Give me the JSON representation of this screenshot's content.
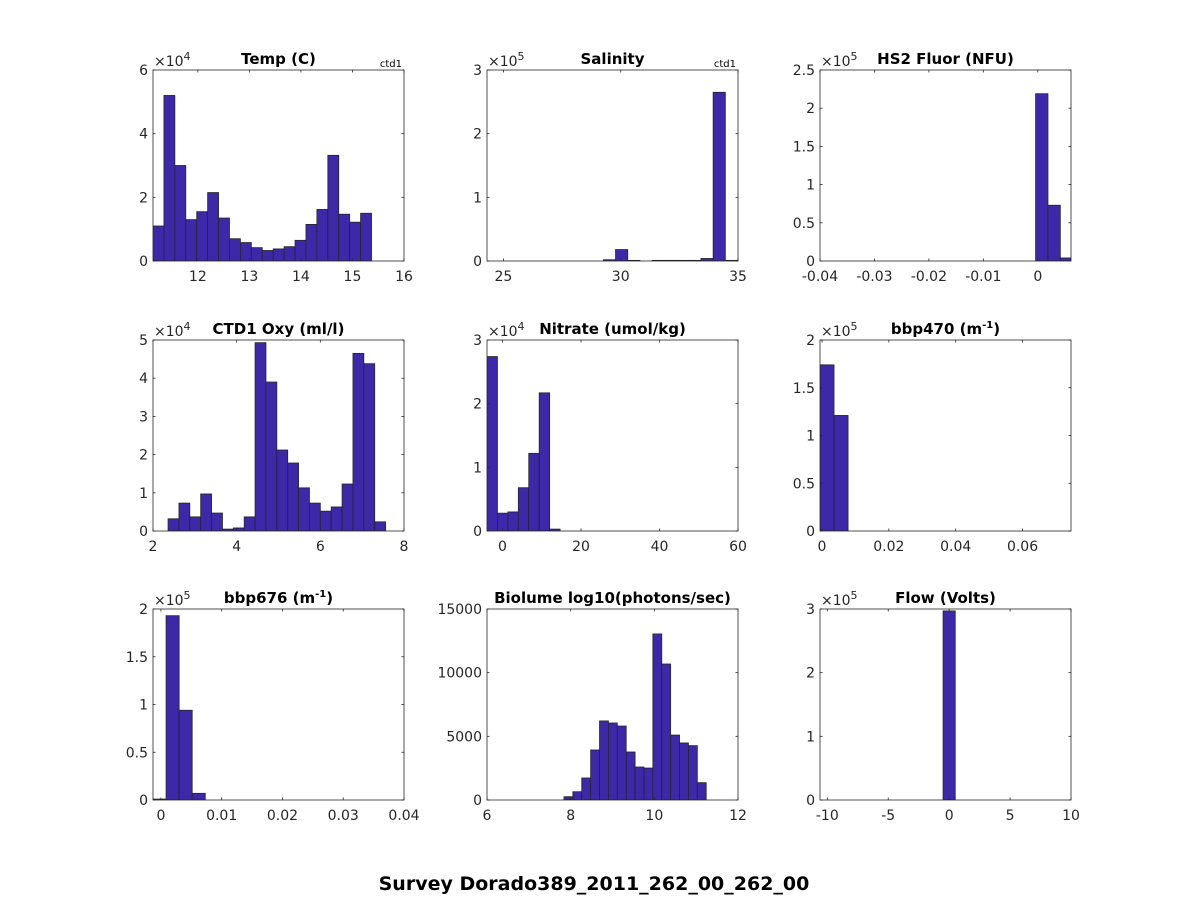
{
  "suptitle": "Survey Dorado389_2011_262_00_262_00",
  "colors": {
    "bar": "#3c28a8",
    "edge": "#262626",
    "axis": "#262626"
  },
  "chart_data": [
    {
      "type": "bar",
      "title": "Temp (C)",
      "corner": "ctd1",
      "exponent": "4",
      "xlim": [
        11.13,
        16
      ],
      "ylim": [
        0,
        60000
      ],
      "xticks": [
        12,
        13,
        14,
        15,
        16
      ],
      "xtick_labels": [
        "12",
        "13",
        "14",
        "15",
        "16"
      ],
      "yticks": [
        0,
        20000,
        40000,
        60000
      ],
      "ytick_labels": [
        "0",
        "2",
        "4",
        "6"
      ],
      "bin_start": 11.13,
      "bin_width": 0.212,
      "values": [
        11000,
        52000,
        30000,
        13000,
        15500,
        21500,
        13500,
        7000,
        5800,
        4200,
        3300,
        3800,
        4500,
        6500,
        11500,
        16200,
        33200,
        14700,
        12200,
        15000
      ]
    },
    {
      "type": "bar",
      "title": "Salinity",
      "corner": "ctd1",
      "exponent": "5",
      "xlim": [
        24.3,
        35
      ],
      "ylim": [
        0,
        300000
      ],
      "xticks": [
        25,
        30,
        35
      ],
      "xtick_labels": [
        "25",
        "30",
        "35"
      ],
      "yticks": [
        0,
        100000,
        200000,
        300000
      ],
      "ytick_labels": [
        "0",
        "1",
        "2",
        "3"
      ],
      "bin_start": 29.26,
      "bin_width": 0.52,
      "values": [
        2000,
        18000,
        1000,
        0,
        1000,
        1000,
        1000,
        1000,
        4000,
        265000,
        1000
      ]
    },
    {
      "type": "bar",
      "title": "HS2 Fluor (NFU)",
      "exponent": "5",
      "xlim": [
        -0.04,
        0.0061
      ],
      "ylim": [
        0,
        250000
      ],
      "xticks": [
        -0.04,
        -0.03,
        -0.02,
        -0.01,
        0
      ],
      "xtick_labels": [
        "-0.04",
        "-0.03",
        "-0.02",
        "-0.01",
        "0"
      ],
      "yticks": [
        0,
        50000,
        100000,
        150000,
        200000,
        250000
      ],
      "ytick_labels": [
        "0",
        "0.5",
        "1",
        "1.5",
        "2",
        "2.5"
      ],
      "bin_start": -0.0004,
      "bin_width": 0.00227,
      "values": [
        219000,
        73000,
        4000
      ]
    },
    {
      "type": "bar",
      "title": "CTD1 Oxy (ml/l)",
      "exponent": "4",
      "xlim": [
        2,
        8
      ],
      "ylim": [
        0,
        50000
      ],
      "xticks": [
        2,
        4,
        6,
        8
      ],
      "xtick_labels": [
        "2",
        "4",
        "6",
        "8"
      ],
      "yticks": [
        0,
        10000,
        20000,
        30000,
        40000,
        50000
      ],
      "ytick_labels": [
        "0",
        "1",
        "2",
        "3",
        "4",
        "5"
      ],
      "bin_start": 2.36,
      "bin_width": 0.26,
      "values": [
        3200,
        7300,
        3700,
        9700,
        4700,
        500,
        800,
        3700,
        49300,
        39000,
        21200,
        17800,
        11300,
        7300,
        5200,
        6300,
        12300,
        46500,
        43800,
        2400
      ]
    },
    {
      "type": "bar",
      "title": "Nitrate (umol/kg)",
      "exponent": "4",
      "xlim": [
        -3.95,
        60
      ],
      "ylim": [
        0,
        30000
      ],
      "xticks": [
        0,
        20,
        40,
        60
      ],
      "xtick_labels": [
        "0",
        "20",
        "40",
        "60"
      ],
      "yticks": [
        0,
        10000,
        20000,
        30000
      ],
      "ytick_labels": [
        "0",
        "1",
        "2",
        "3"
      ],
      "bin_start": -3.95,
      "bin_width": 2.66,
      "values": [
        27400,
        2800,
        3000,
        6800,
        12200,
        21700,
        300
      ]
    },
    {
      "type": "bar",
      "title": "bbp470 (m",
      "title_sup": "-1",
      "title_end": ")",
      "exponent": "5",
      "xlim": [
        -0.0006,
        0.0745
      ],
      "ylim": [
        0,
        200000
      ],
      "xticks": [
        0,
        0.02,
        0.04,
        0.06
      ],
      "xtick_labels": [
        "0",
        "0.02",
        "0.04",
        "0.06"
      ],
      "yticks": [
        0,
        50000,
        100000,
        150000,
        200000
      ],
      "ytick_labels": [
        "0",
        "0.5",
        "1",
        "1.5",
        "2"
      ],
      "bin_start": -0.0006,
      "bin_width": 0.0042,
      "values": [
        174000,
        121000
      ]
    },
    {
      "type": "bar",
      "title": "bbp676 (m",
      "title_sup": "-1",
      "title_end": ")",
      "exponent": "5",
      "xlim": [
        -0.0013,
        0.04
      ],
      "ylim": [
        0,
        200000
      ],
      "xticks": [
        0,
        0.01,
        0.02,
        0.03,
        0.04
      ],
      "xtick_labels": [
        "0",
        "0.01",
        "0.02",
        "0.03",
        "0.04"
      ],
      "yticks": [
        0,
        50000,
        100000,
        150000,
        200000
      ],
      "ytick_labels": [
        "0",
        "0.5",
        "1",
        "1.5",
        "2"
      ],
      "bin_start": -0.0013,
      "bin_width": 0.00215,
      "values": [
        1000,
        193000,
        94000,
        7000
      ]
    },
    {
      "type": "bar",
      "title": "Biolume log10(photons/sec)",
      "xlim": [
        6,
        12
      ],
      "ylim": [
        0,
        15000
      ],
      "xticks": [
        6,
        8,
        10,
        12
      ],
      "xtick_labels": [
        "6",
        "8",
        "10",
        "12"
      ],
      "yticks": [
        0,
        5000,
        10000,
        15000
      ],
      "ytick_labels": [
        "0",
        "5000",
        "10000",
        "15000"
      ],
      "bin_start": 7.84,
      "bin_width": 0.2125,
      "values": [
        260,
        650,
        1730,
        3930,
        6210,
        6050,
        5810,
        3770,
        2590,
        2510,
        13040,
        10680,
        5100,
        4480,
        4270,
        1360
      ]
    },
    {
      "type": "bar",
      "title": "Flow (Volts)",
      "exponent": "5",
      "xlim": [
        -10.6,
        10
      ],
      "ylim": [
        0,
        300000
      ],
      "xticks": [
        -10,
        -5,
        0,
        5,
        10
      ],
      "xtick_labels": [
        "-10",
        "-5",
        "0",
        "5",
        "10"
      ],
      "yticks": [
        0,
        100000,
        200000,
        300000
      ],
      "ytick_labels": [
        "0",
        "1",
        "2",
        "3"
      ],
      "bin_start": -0.5,
      "bin_width": 1.0,
      "values": [
        297000
      ]
    }
  ]
}
